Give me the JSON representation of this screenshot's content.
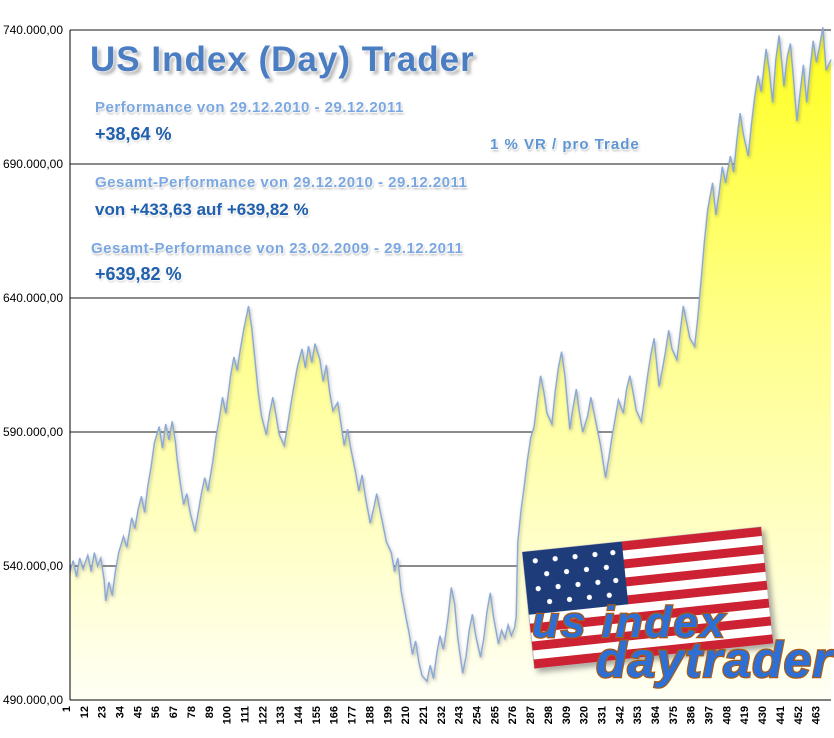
{
  "header": {
    "title": "US Index (Day) Trader",
    "perf_label": "Performance  von  29.12.2010 - 29.12.2011",
    "perf_value": "+38,64  %",
    "vr_note": "1 % VR / pro Trade",
    "gesamt1_label": "Gesamt-Performance  von  29.12.2010 - 29.12.2011",
    "gesamt1_value": "von +433,63 auf +639,82 %",
    "gesamt2_label": "Gesamt-Performance  von  23.02.2009 - 29.12.2011",
    "gesamt2_value": "+639,82 %"
  },
  "logo": {
    "line1": "us index",
    "line2": "daytrader"
  },
  "chart_data": {
    "type": "area",
    "title": "US Index (Day) Trader",
    "xlabel": "",
    "ylabel": "",
    "legend": "none",
    "grid": "horizontal",
    "x_max": 470,
    "ylim": [
      490000,
      740000
    ],
    "xticks": [
      1,
      12,
      23,
      34,
      45,
      56,
      67,
      78,
      89,
      100,
      111,
      122,
      133,
      144,
      155,
      166,
      177,
      188,
      199,
      210,
      221,
      232,
      243,
      254,
      265,
      276,
      287,
      298,
      309,
      320,
      331,
      342,
      353,
      364,
      375,
      386,
      397,
      408,
      419,
      430,
      441,
      452,
      463
    ],
    "yticks": [
      {
        "value": 740000,
        "label": "740.000,00"
      },
      {
        "value": 690000,
        "label": "690.000,00"
      },
      {
        "value": 640000,
        "label": "640.000,00"
      },
      {
        "value": 590000,
        "label": "590.000,00"
      },
      {
        "value": 540000,
        "label": "540.000,00"
      },
      {
        "value": 490000,
        "label": "490.000,00"
      }
    ],
    "colors": {
      "line": "#8aa9d6",
      "grid": "#1a1a1a",
      "axis": "#000000",
      "area_stops": [
        {
          "offset": "0%",
          "color": "#ffff1e"
        },
        {
          "offset": "45%",
          "color": "#ffff8c"
        },
        {
          "offset": "100%",
          "color": "#fffff5"
        }
      ]
    },
    "points": [
      [
        1,
        538000
      ],
      [
        3,
        542000
      ],
      [
        5,
        536000
      ],
      [
        7,
        543000
      ],
      [
        9,
        539000
      ],
      [
        12,
        544000
      ],
      [
        14,
        538000
      ],
      [
        16,
        545000
      ],
      [
        18,
        540000
      ],
      [
        20,
        543000
      ],
      [
        22,
        535000
      ],
      [
        23,
        527000
      ],
      [
        25,
        534000
      ],
      [
        27,
        529000
      ],
      [
        29,
        538000
      ],
      [
        31,
        545000
      ],
      [
        34,
        551000
      ],
      [
        36,
        547000
      ],
      [
        39,
        558000
      ],
      [
        41,
        554000
      ],
      [
        43,
        561000
      ],
      [
        45,
        566000
      ],
      [
        47,
        560000
      ],
      [
        49,
        570000
      ],
      [
        51,
        577000
      ],
      [
        53,
        586000
      ],
      [
        56,
        592000
      ],
      [
        58,
        584000
      ],
      [
        60,
        593000
      ],
      [
        62,
        587000
      ],
      [
        64,
        594000
      ],
      [
        66,
        586000
      ],
      [
        67,
        580000
      ],
      [
        69,
        571000
      ],
      [
        71,
        563000
      ],
      [
        73,
        567000
      ],
      [
        75,
        560000
      ],
      [
        78,
        553000
      ],
      [
        80,
        560000
      ],
      [
        82,
        567000
      ],
      [
        84,
        573000
      ],
      [
        86,
        568000
      ],
      [
        89,
        579000
      ],
      [
        91,
        588000
      ],
      [
        93,
        595000
      ],
      [
        95,
        603000
      ],
      [
        97,
        597000
      ],
      [
        100,
        611000
      ],
      [
        102,
        618000
      ],
      [
        104,
        613000
      ],
      [
        106,
        621000
      ],
      [
        108,
        628000
      ],
      [
        110,
        634000
      ],
      [
        111,
        637000
      ],
      [
        113,
        629000
      ],
      [
        115,
        617000
      ],
      [
        117,
        605000
      ],
      [
        119,
        596000
      ],
      [
        122,
        589000
      ],
      [
        124,
        597000
      ],
      [
        126,
        603000
      ],
      [
        128,
        596000
      ],
      [
        130,
        589000
      ],
      [
        133,
        585000
      ],
      [
        135,
        592000
      ],
      [
        137,
        600000
      ],
      [
        139,
        607000
      ],
      [
        141,
        614000
      ],
      [
        144,
        621000
      ],
      [
        146,
        614000
      ],
      [
        148,
        622000
      ],
      [
        150,
        616000
      ],
      [
        152,
        623000
      ],
      [
        154,
        619000
      ],
      [
        155,
        617000
      ],
      [
        157,
        609000
      ],
      [
        159,
        615000
      ],
      [
        161,
        605000
      ],
      [
        163,
        598000
      ],
      [
        166,
        601000
      ],
      [
        168,
        593000
      ],
      [
        170,
        585000
      ],
      [
        172,
        591000
      ],
      [
        174,
        584000
      ],
      [
        177,
        575000
      ],
      [
        179,
        568000
      ],
      [
        181,
        574000
      ],
      [
        183,
        566000
      ],
      [
        186,
        556000
      ],
      [
        188,
        561000
      ],
      [
        190,
        567000
      ],
      [
        192,
        561000
      ],
      [
        194,
        555000
      ],
      [
        196,
        549000
      ],
      [
        199,
        545000
      ],
      [
        201,
        538000
      ],
      [
        203,
        543000
      ],
      [
        205,
        531000
      ],
      [
        208,
        521000
      ],
      [
        210,
        515000
      ],
      [
        212,
        507000
      ],
      [
        214,
        512000
      ],
      [
        216,
        504000
      ],
      [
        218,
        499000
      ],
      [
        221,
        497000
      ],
      [
        223,
        503000
      ],
      [
        225,
        498000
      ],
      [
        227,
        507000
      ],
      [
        229,
        514000
      ],
      [
        231,
        509000
      ],
      [
        232,
        512000
      ],
      [
        234,
        521000
      ],
      [
        236,
        532000
      ],
      [
        238,
        526000
      ],
      [
        240,
        513000
      ],
      [
        243,
        500000
      ],
      [
        245,
        506000
      ],
      [
        247,
        516000
      ],
      [
        249,
        522000
      ],
      [
        251,
        514000
      ],
      [
        254,
        506000
      ],
      [
        256,
        513000
      ],
      [
        258,
        523000
      ],
      [
        260,
        530000
      ],
      [
        262,
        521000
      ],
      [
        265,
        511000
      ],
      [
        267,
        516000
      ],
      [
        269,
        513000
      ],
      [
        271,
        518000
      ],
      [
        273,
        514000
      ],
      [
        275,
        517000
      ],
      [
        276,
        521000
      ],
      [
        277,
        549000
      ],
      [
        279,
        561000
      ],
      [
        281,
        570000
      ],
      [
        283,
        580000
      ],
      [
        285,
        588000
      ],
      [
        287,
        592000
      ],
      [
        289,
        602000
      ],
      [
        291,
        611000
      ],
      [
        293,
        605000
      ],
      [
        295,
        597000
      ],
      [
        298,
        593000
      ],
      [
        300,
        605000
      ],
      [
        302,
        614000
      ],
      [
        304,
        620000
      ],
      [
        306,
        611000
      ],
      [
        309,
        591000
      ],
      [
        311,
        599000
      ],
      [
        313,
        606000
      ],
      [
        315,
        597000
      ],
      [
        317,
        590000
      ],
      [
        320,
        596000
      ],
      [
        322,
        603000
      ],
      [
        324,
        597000
      ],
      [
        326,
        591000
      ],
      [
        328,
        585000
      ],
      [
        331,
        573000
      ],
      [
        333,
        580000
      ],
      [
        335,
        588000
      ],
      [
        337,
        595000
      ],
      [
        339,
        602000
      ],
      [
        342,
        597000
      ],
      [
        344,
        606000
      ],
      [
        346,
        611000
      ],
      [
        348,
        605000
      ],
      [
        350,
        598000
      ],
      [
        353,
        594000
      ],
      [
        355,
        602000
      ],
      [
        357,
        611000
      ],
      [
        359,
        619000
      ],
      [
        361,
        625000
      ],
      [
        364,
        607000
      ],
      [
        366,
        613000
      ],
      [
        368,
        620000
      ],
      [
        370,
        628000
      ],
      [
        372,
        621000
      ],
      [
        375,
        617000
      ],
      [
        377,
        627000
      ],
      [
        379,
        637000
      ],
      [
        381,
        631000
      ],
      [
        383,
        625000
      ],
      [
        386,
        622000
      ],
      [
        388,
        633000
      ],
      [
        390,
        647000
      ],
      [
        392,
        661000
      ],
      [
        394,
        673000
      ],
      [
        397,
        683000
      ],
      [
        399,
        671000
      ],
      [
        401,
        679000
      ],
      [
        403,
        689000
      ],
      [
        405,
        683000
      ],
      [
        408,
        693000
      ],
      [
        410,
        687000
      ],
      [
        412,
        699000
      ],
      [
        414,
        709000
      ],
      [
        416,
        701000
      ],
      [
        419,
        693000
      ],
      [
        421,
        705000
      ],
      [
        423,
        715000
      ],
      [
        425,
        723000
      ],
      [
        427,
        717000
      ],
      [
        430,
        733000
      ],
      [
        432,
        725000
      ],
      [
        434,
        713000
      ],
      [
        436,
        729000
      ],
      [
        438,
        738000
      ],
      [
        440,
        726000
      ],
      [
        441,
        719000
      ],
      [
        443,
        730000
      ],
      [
        445,
        735000
      ],
      [
        447,
        721000
      ],
      [
        449,
        706000
      ],
      [
        451,
        717000
      ],
      [
        453,
        727000
      ],
      [
        455,
        713000
      ],
      [
        457,
        725000
      ],
      [
        459,
        736000
      ],
      [
        461,
        728000
      ],
      [
        463,
        734000
      ],
      [
        465,
        741000
      ],
      [
        467,
        725000
      ],
      [
        470,
        729000
      ]
    ]
  }
}
